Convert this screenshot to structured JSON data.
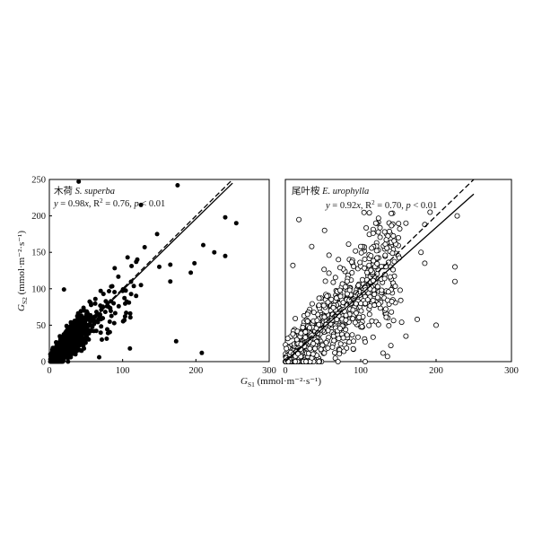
{
  "chart_data": [
    {
      "type": "scatter",
      "panel": "left",
      "title_cn": "木荷",
      "title_species": "S. superba",
      "equation": {
        "y": "y",
        "eq": " = 0.98",
        "x": "x",
        "r": ", R",
        "sup": "2",
        "rest": " = 0.76, ",
        "p": "p",
        "tail": " < 0.01"
      },
      "fit_slope": 0.98,
      "ylabel": {
        "main": "G",
        "sub": "S2",
        "unit": " (mmol·m⁻²·s⁻¹)"
      },
      "xlim": [
        0,
        300
      ],
      "ylim": [
        0,
        250
      ],
      "x_ticks": [
        "0",
        "100",
        "200",
        "300"
      ],
      "y_ticks": [
        "0",
        "50",
        "100",
        "150",
        "200",
        "250"
      ],
      "marker": "filled",
      "outliers": [
        {
          "x": 40,
          "y": 247
        },
        {
          "x": 175,
          "y": 242
        },
        {
          "x": 240,
          "y": 198
        },
        {
          "x": 255,
          "y": 190
        },
        {
          "x": 125,
          "y": 215
        },
        {
          "x": 130,
          "y": 157
        },
        {
          "x": 147,
          "y": 175
        },
        {
          "x": 210,
          "y": 160
        },
        {
          "x": 225,
          "y": 150
        },
        {
          "x": 198,
          "y": 135
        },
        {
          "x": 193,
          "y": 122
        },
        {
          "x": 165,
          "y": 133
        },
        {
          "x": 150,
          "y": 130
        },
        {
          "x": 120,
          "y": 140
        },
        {
          "x": 100,
          "y": 97
        },
        {
          "x": 125,
          "y": 105
        },
        {
          "x": 165,
          "y": 110
        },
        {
          "x": 20,
          "y": 99
        },
        {
          "x": 70,
          "y": 97
        },
        {
          "x": 173,
          "y": 28
        },
        {
          "x": 208,
          "y": 12
        },
        {
          "x": 68,
          "y": 6
        },
        {
          "x": 110,
          "y": 18
        },
        {
          "x": 240,
          "y": 145
        }
      ]
    },
    {
      "type": "scatter",
      "panel": "right",
      "title_cn": "尾叶桉",
      "title_species": "E. urophylla",
      "equation": {
        "y": "y",
        "eq": " = 0.92",
        "x": "x",
        "r": ", R",
        "sup": "2",
        "rest": " = 0.70, ",
        "p": "p",
        "tail": " < 0.01"
      },
      "fit_slope": 0.92,
      "xlim": [
        0,
        300
      ],
      "ylim": [
        0,
        250
      ],
      "x_ticks": [
        "0",
        "100",
        "200",
        "300"
      ],
      "marker": "open",
      "outliers": [
        {
          "x": 18,
          "y": 195
        },
        {
          "x": 52,
          "y": 180
        },
        {
          "x": 58,
          "y": 146
        },
        {
          "x": 100,
          "y": 158
        },
        {
          "x": 150,
          "y": 170
        },
        {
          "x": 185,
          "y": 188
        },
        {
          "x": 192,
          "y": 205
        },
        {
          "x": 228,
          "y": 200
        },
        {
          "x": 225,
          "y": 130
        },
        {
          "x": 225,
          "y": 110
        },
        {
          "x": 185,
          "y": 135
        },
        {
          "x": 180,
          "y": 150
        },
        {
          "x": 120,
          "y": 190
        },
        {
          "x": 160,
          "y": 190
        },
        {
          "x": 35,
          "y": 158
        },
        {
          "x": 10,
          "y": 132
        },
        {
          "x": 200,
          "y": 50
        },
        {
          "x": 175,
          "y": 58
        },
        {
          "x": 160,
          "y": 35
        },
        {
          "x": 140,
          "y": 22
        }
      ]
    }
  ],
  "shared_xlabel": {
    "main": "G",
    "sub": "S1",
    "unit": " (mmol·m⁻²·s⁻¹)"
  }
}
